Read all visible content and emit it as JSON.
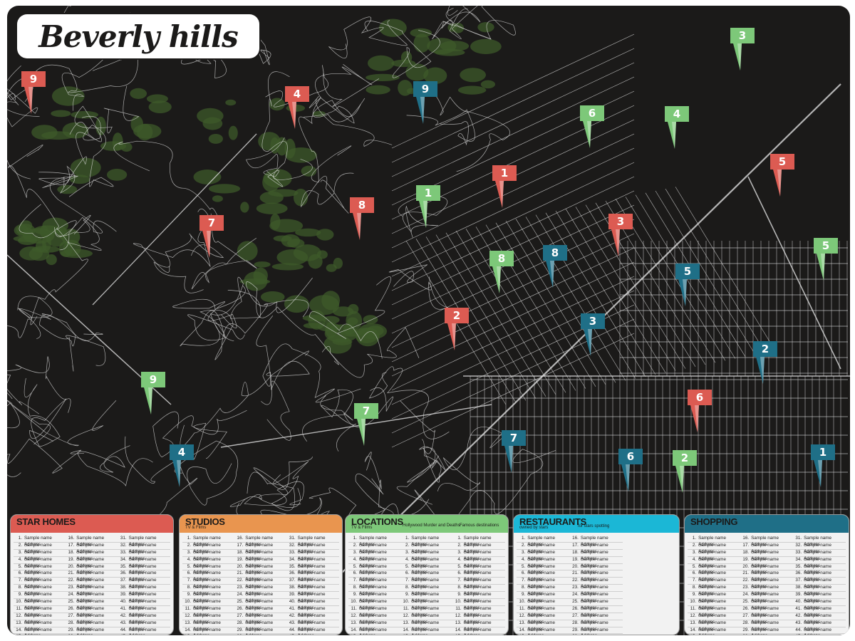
{
  "title": "Beverly hills",
  "colors": {
    "star_homes": "#dc5b52",
    "studios": "#e9954f",
    "locations": "#7dc879",
    "restaurants": "#1bb7d6",
    "shopping": "#1f6f87",
    "background": "#1b1a19",
    "greenery": "#3e5a2a",
    "roads": "#e6e6e6"
  },
  "markers": [
    {
      "category": "star_homes",
      "label": "9"
    },
    {
      "category": "star_homes",
      "label": "4"
    },
    {
      "category": "star_homes",
      "label": "1"
    },
    {
      "category": "star_homes",
      "label": "5"
    },
    {
      "category": "star_homes",
      "label": "7"
    },
    {
      "category": "star_homes",
      "label": "8"
    },
    {
      "category": "star_homes",
      "label": "3"
    },
    {
      "category": "star_homes",
      "label": "2"
    },
    {
      "category": "star_homes",
      "label": "6"
    },
    {
      "category": "shopping",
      "label": "9"
    },
    {
      "category": "shopping",
      "label": "8"
    },
    {
      "category": "shopping",
      "label": "5"
    },
    {
      "category": "shopping",
      "label": "3"
    },
    {
      "category": "shopping",
      "label": "2"
    },
    {
      "category": "shopping",
      "label": "4"
    },
    {
      "category": "shopping",
      "label": "7"
    },
    {
      "category": "shopping",
      "label": "6"
    },
    {
      "category": "shopping",
      "label": "1"
    },
    {
      "category": "locations",
      "label": "3"
    },
    {
      "category": "locations",
      "label": "6"
    },
    {
      "category": "locations",
      "label": "4"
    },
    {
      "category": "locations",
      "label": "1"
    },
    {
      "category": "locations",
      "label": "8"
    },
    {
      "category": "locations",
      "label": "5"
    },
    {
      "category": "locations",
      "label": "9"
    },
    {
      "category": "locations",
      "label": "7"
    },
    {
      "category": "locations",
      "label": "2"
    }
  ],
  "legend": [
    {
      "key": "star_homes",
      "title": "STAR HOMES",
      "subtitle": "",
      "extra": [],
      "columns": 3,
      "count": 45,
      "entry_text": "Sample name Address"
    },
    {
      "key": "studios",
      "title": "STUDIOS",
      "subtitle": "TV & Films",
      "extra": [],
      "columns": 3,
      "count": 45,
      "entry_text": "Sample name Address"
    },
    {
      "key": "locations",
      "title": "LOCATIONS",
      "subtitle": "TV & Films",
      "extra": [
        "Hollywood Murder and Deaths",
        "Famous destinations"
      ],
      "columns": 3,
      "count": 15,
      "entry_text": "Sample name Address"
    },
    {
      "key": "restaurants",
      "title": "RESTAURANTS",
      "subtitle": "owned by stars",
      "extra": [
        "for stars spotting"
      ],
      "columns": 3,
      "count": 30,
      "entry_text": "Sample name Address"
    },
    {
      "key": "shopping",
      "title": "SHOPPING",
      "subtitle": "",
      "extra": [],
      "columns": 3,
      "count": 45,
      "entry_text": "Sample name Address"
    }
  ]
}
